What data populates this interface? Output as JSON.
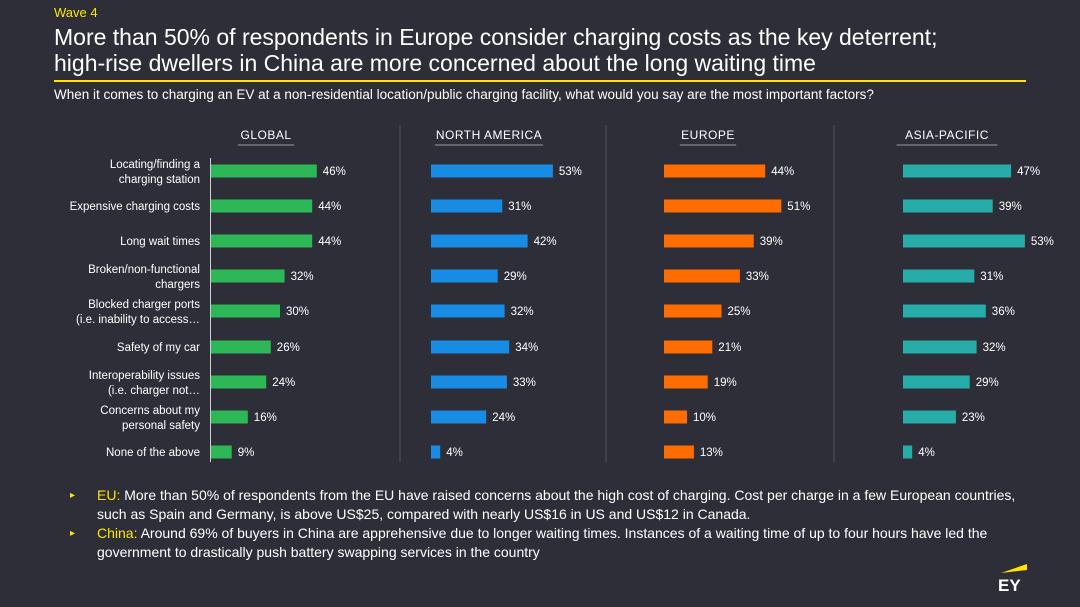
{
  "wave": "Wave 4",
  "title_line1": "More than 50% of respondents in Europe consider charging costs as the key deterrent;",
  "title_line2": "high-rise dwellers in China are more concerned about the long waiting time",
  "subtitle": "When it comes to charging an EV at a non-residential location/public charging facility, what would you say are the most important factors?",
  "chart_data": {
    "type": "bar",
    "orientation": "horizontal",
    "categories": [
      [
        "Locating/finding a",
        "charging station"
      ],
      [
        "Expensive charging costs"
      ],
      [
        "Long wait times"
      ],
      [
        "Broken/non-functional",
        "chargers"
      ],
      [
        "Blocked charger ports",
        "(i.e. inability to access…"
      ],
      [
        "Safety of my car"
      ],
      [
        "Interoperability issues",
        "(i.e. charger not…"
      ],
      [
        "Concerns about my",
        "personal safety"
      ],
      [
        "None of the above"
      ]
    ],
    "unit": "%",
    "series": [
      {
        "name": "GLOBAL",
        "color": "#2db757",
        "values": [
          46,
          44,
          44,
          32,
          30,
          26,
          24,
          16,
          9
        ]
      },
      {
        "name": "NORTH AMERICA",
        "color": "#188ce5",
        "values": [
          53,
          31,
          42,
          29,
          32,
          34,
          33,
          24,
          4
        ]
      },
      {
        "name": "EUROPE",
        "color": "#ff6d00",
        "values": [
          44,
          51,
          39,
          33,
          25,
          21,
          19,
          10,
          13
        ]
      },
      {
        "name": "ASIA-PACIFIC",
        "color": "#27acaa",
        "values": [
          47,
          39,
          53,
          31,
          36,
          32,
          29,
          23,
          4
        ]
      }
    ]
  },
  "bullets": [
    {
      "label": "EU:",
      "text": " More than 50% of respondents from the EU have raised concerns about the high cost of charging. Cost per charge in a few European countries, such as Spain and Germany, is above US$25, compared with nearly US$16 in US and US$12 in Canada."
    },
    {
      "label": "China:",
      "text": " Around 69% of buyers in China are apprehensive due to longer waiting times. Instances of a waiting time of up to four hours have led the government to drastically push battery swapping services in the country"
    }
  ],
  "logo_text": "EY",
  "colors": {
    "accent": "#ffe600",
    "background": "#2e2e38",
    "divider": "#54545e"
  }
}
